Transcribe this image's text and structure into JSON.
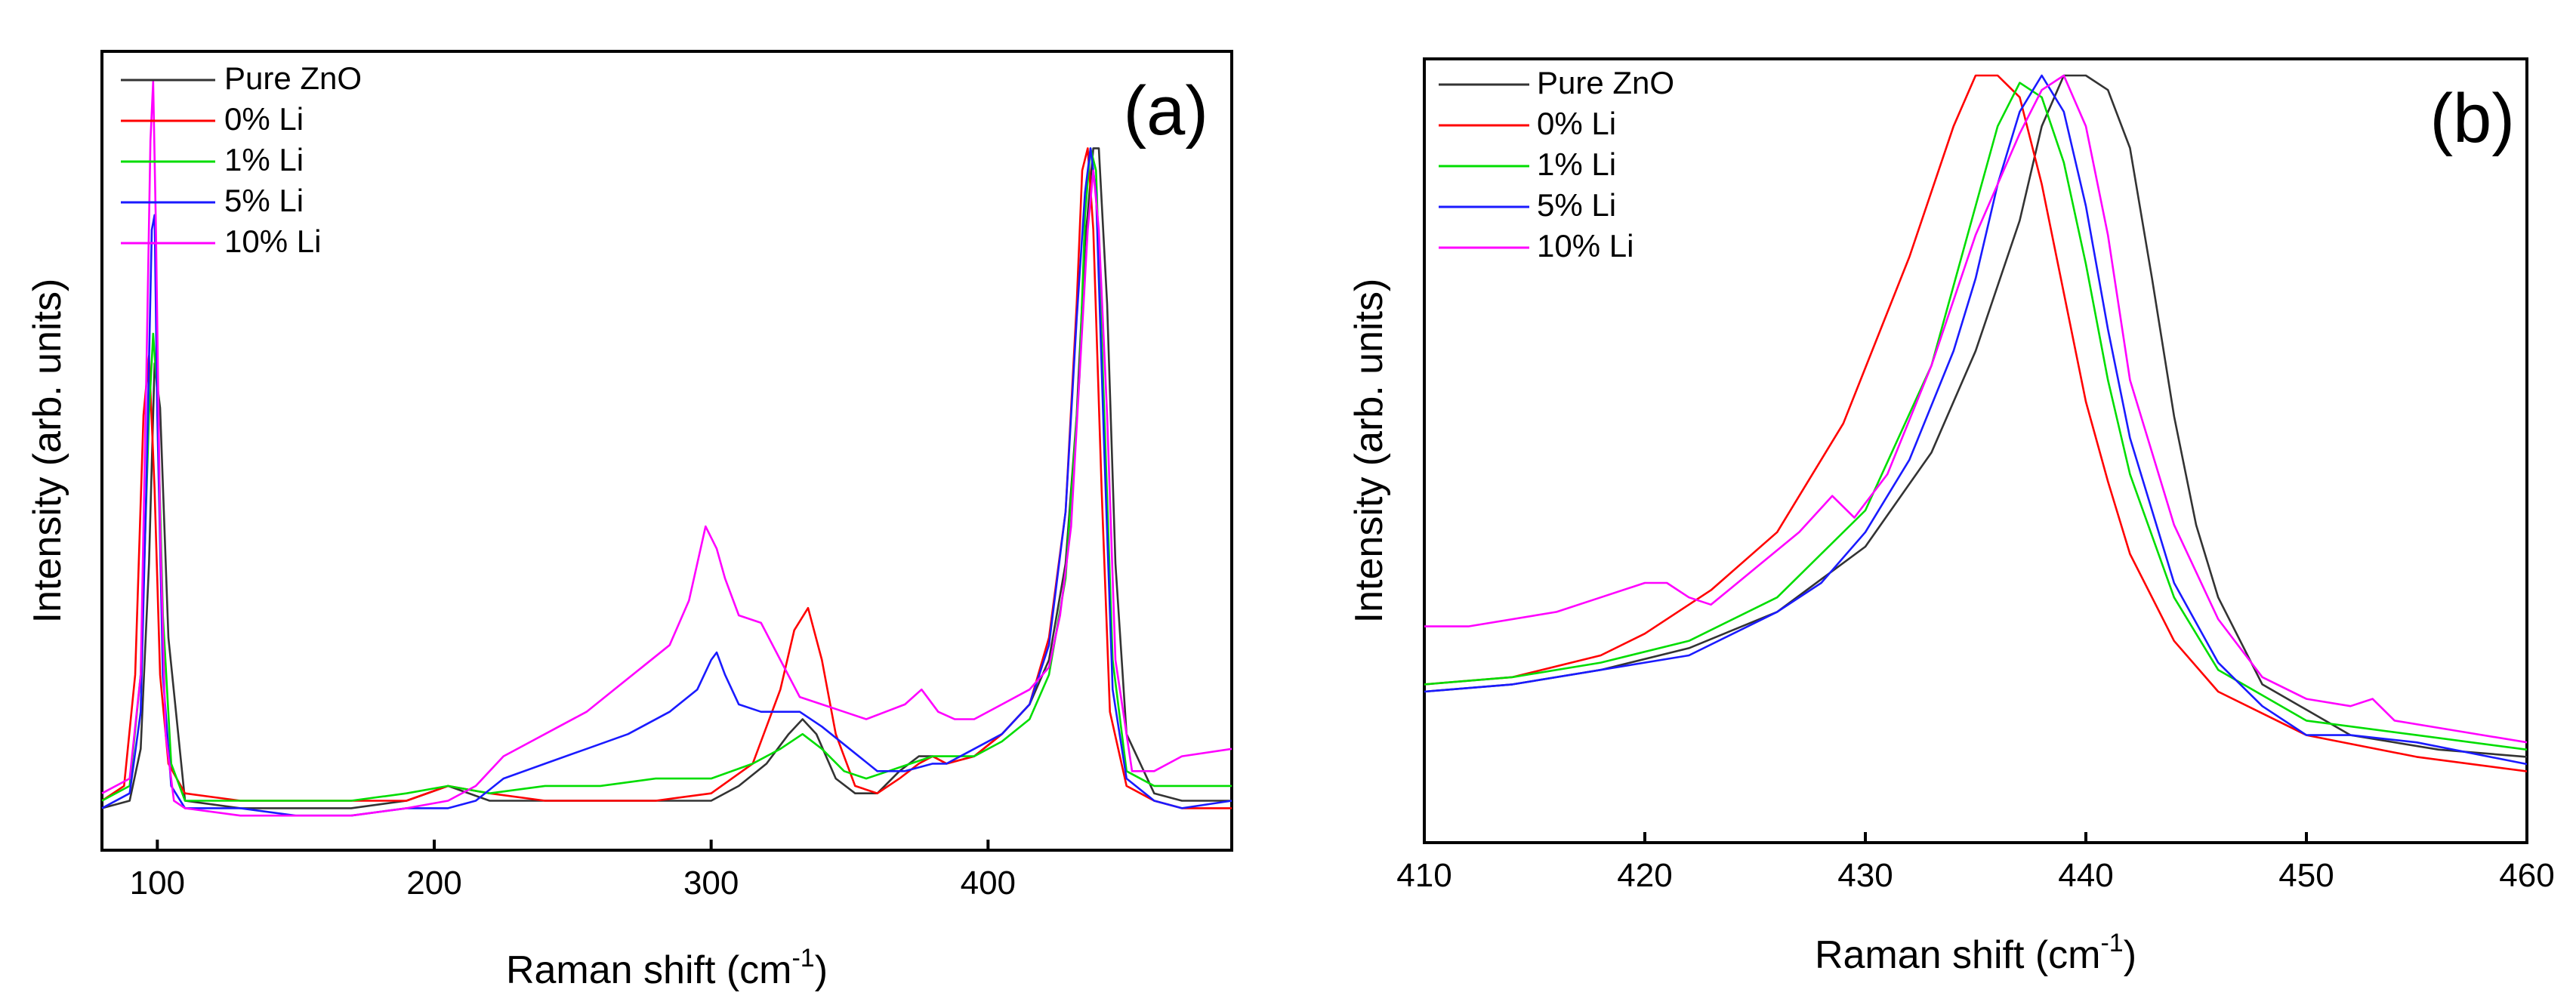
{
  "colors": {
    "Pure ZnO": "#333333",
    "0% Li": "#ff0000",
    "1% Li": "#00dd00",
    "5% Li": "#1a1aff",
    "10% Li": "#ff00ff"
  },
  "chart_data": [
    {
      "type": "line",
      "panel_label": "(a)",
      "xlabel_main": "Raman shift (cm",
      "xlabel_sup": "-1",
      "xlabel_end": ")",
      "ylabel": "Intensity (arb. units)",
      "xlim": [
        80,
        488
      ],
      "ylim": [
        0,
        1
      ],
      "xticks": [
        100,
        200,
        300,
        400
      ],
      "xtick_labels": [
        "100",
        "200",
        "300",
        "400"
      ],
      "legend_position": "top-left",
      "series": [
        {
          "name": "Pure ZnO",
          "x": [
            80,
            90,
            94,
            97,
            99,
            101,
            104,
            110,
            130,
            150,
            170,
            190,
            205,
            220,
            240,
            260,
            280,
            300,
            310,
            320,
            328,
            333,
            338,
            345,
            352,
            360,
            368,
            375,
            380,
            385,
            395,
            405,
            415,
            422,
            428,
            432,
            435,
            438,
            440,
            443,
            446,
            450,
            460,
            470,
            488
          ],
          "y": [
            0.02,
            0.03,
            0.1,
            0.35,
            0.62,
            0.56,
            0.25,
            0.03,
            0.02,
            0.02,
            0.02,
            0.03,
            0.05,
            0.03,
            0.03,
            0.03,
            0.03,
            0.03,
            0.05,
            0.08,
            0.12,
            0.14,
            0.12,
            0.06,
            0.04,
            0.04,
            0.07,
            0.09,
            0.09,
            0.08,
            0.09,
            0.12,
            0.16,
            0.22,
            0.35,
            0.55,
            0.78,
            0.91,
            0.91,
            0.7,
            0.35,
            0.12,
            0.04,
            0.03,
            0.03
          ]
        },
        {
          "name": "0% Li",
          "x": [
            80,
            88,
            92,
            95,
            97,
            99,
            101,
            104,
            110,
            130,
            150,
            170,
            190,
            205,
            220,
            240,
            260,
            280,
            300,
            315,
            325,
            330,
            335,
            340,
            345,
            352,
            360,
            368,
            375,
            380,
            385,
            395,
            405,
            415,
            422,
            428,
            432,
            434,
            436,
            438,
            441,
            444,
            450,
            460,
            470,
            488
          ],
          "y": [
            0.03,
            0.05,
            0.2,
            0.55,
            0.63,
            0.45,
            0.2,
            0.08,
            0.04,
            0.03,
            0.03,
            0.03,
            0.03,
            0.05,
            0.04,
            0.03,
            0.03,
            0.03,
            0.04,
            0.08,
            0.18,
            0.26,
            0.29,
            0.22,
            0.12,
            0.05,
            0.04,
            0.06,
            0.08,
            0.09,
            0.08,
            0.09,
            0.12,
            0.16,
            0.25,
            0.42,
            0.7,
            0.88,
            0.91,
            0.8,
            0.45,
            0.15,
            0.05,
            0.03,
            0.02,
            0.02
          ]
        },
        {
          "name": "1% Li",
          "x": [
            80,
            90,
            94,
            97,
            98.5,
            100,
            102,
            105,
            110,
            130,
            150,
            170,
            190,
            205,
            220,
            240,
            260,
            280,
            300,
            315,
            325,
            333,
            340,
            348,
            356,
            364,
            372,
            380,
            385,
            395,
            405,
            415,
            422,
            428,
            433,
            435,
            437,
            439,
            442,
            445,
            450,
            460,
            470,
            488
          ],
          "y": [
            0.03,
            0.05,
            0.2,
            0.55,
            0.66,
            0.58,
            0.28,
            0.08,
            0.03,
            0.03,
            0.03,
            0.03,
            0.04,
            0.05,
            0.04,
            0.05,
            0.05,
            0.06,
            0.06,
            0.08,
            0.1,
            0.12,
            0.1,
            0.07,
            0.06,
            0.07,
            0.08,
            0.09,
            0.09,
            0.09,
            0.11,
            0.14,
            0.2,
            0.33,
            0.6,
            0.82,
            0.91,
            0.88,
            0.55,
            0.22,
            0.07,
            0.05,
            0.05,
            0.05
          ]
        },
        {
          "name": "5% Li",
          "x": [
            80,
            90,
            94,
            96,
            98,
            99,
            100,
            102,
            105,
            110,
            130,
            150,
            170,
            190,
            205,
            215,
            225,
            240,
            255,
            270,
            285,
            295,
            300,
            302,
            305,
            310,
            318,
            325,
            332,
            340,
            350,
            360,
            370,
            380,
            385,
            395,
            405,
            415,
            422,
            428,
            432,
            435,
            437,
            439,
            442,
            445,
            450,
            460,
            470,
            488
          ],
          "y": [
            0.02,
            0.04,
            0.15,
            0.45,
            0.8,
            0.82,
            0.55,
            0.2,
            0.05,
            0.02,
            0.02,
            0.01,
            0.01,
            0.02,
            0.02,
            0.03,
            0.06,
            0.08,
            0.1,
            0.12,
            0.15,
            0.18,
            0.22,
            0.23,
            0.2,
            0.16,
            0.15,
            0.15,
            0.15,
            0.13,
            0.1,
            0.07,
            0.07,
            0.08,
            0.08,
            0.1,
            0.12,
            0.16,
            0.24,
            0.42,
            0.68,
            0.85,
            0.91,
            0.85,
            0.5,
            0.18,
            0.06,
            0.03,
            0.02,
            0.03
          ]
        },
        {
          "name": "10% Li",
          "x": [
            80,
            90,
            94,
            96,
            97.5,
            98.5,
            99.5,
            101,
            103,
            106,
            110,
            130,
            150,
            170,
            190,
            205,
            215,
            225,
            235,
            245,
            255,
            265,
            275,
            285,
            292,
            298,
            302,
            305,
            310,
            318,
            325,
            332,
            340,
            348,
            356,
            363,
            370,
            376,
            382,
            388,
            395,
            405,
            415,
            422,
            426,
            430,
            433,
            436,
            438,
            440,
            443,
            446,
            452,
            460,
            470,
            488
          ],
          "y": [
            0.04,
            0.06,
            0.2,
            0.6,
            0.92,
            1.0,
            0.8,
            0.4,
            0.12,
            0.03,
            0.02,
            0.01,
            0.01,
            0.01,
            0.02,
            0.03,
            0.05,
            0.09,
            0.11,
            0.13,
            0.15,
            0.18,
            0.21,
            0.24,
            0.3,
            0.4,
            0.37,
            0.33,
            0.28,
            0.27,
            0.22,
            0.17,
            0.16,
            0.15,
            0.14,
            0.15,
            0.16,
            0.18,
            0.15,
            0.14,
            0.14,
            0.16,
            0.18,
            0.21,
            0.28,
            0.4,
            0.6,
            0.8,
            0.88,
            0.8,
            0.55,
            0.22,
            0.07,
            0.07,
            0.09,
            0.1
          ]
        }
      ]
    },
    {
      "type": "line",
      "panel_label": "(b)",
      "xlabel_main": "Raman shift (cm",
      "xlabel_sup": "-1",
      "xlabel_end": ")",
      "ylabel": "Intensity (arb. units)",
      "xlim": [
        410,
        460
      ],
      "ylim": [
        0,
        1
      ],
      "xticks": [
        410,
        420,
        430,
        440,
        450,
        460
      ],
      "xtick_labels": [
        "410",
        "420",
        "430",
        "440",
        "450",
        "460"
      ],
      "legend_position": "top-left",
      "series": [
        {
          "name": "Pure ZnO",
          "x": [
            410,
            414,
            418,
            422,
            426,
            430,
            433,
            435,
            437,
            438,
            439,
            440,
            441,
            442,
            443,
            444,
            445,
            446,
            448,
            452,
            456,
            460
          ],
          "y": [
            0.15,
            0.16,
            0.18,
            0.21,
            0.26,
            0.35,
            0.48,
            0.62,
            0.8,
            0.93,
            1.0,
            1.0,
            0.98,
            0.9,
            0.72,
            0.53,
            0.38,
            0.28,
            0.16,
            0.09,
            0.07,
            0.06
          ]
        },
        {
          "name": "0% Li",
          "x": [
            410,
            414,
            418,
            420,
            423,
            426,
            429,
            432,
            434,
            435,
            436,
            437,
            438,
            439,
            440,
            441,
            442,
            444,
            446,
            450,
            455,
            460
          ],
          "y": [
            0.16,
            0.17,
            0.2,
            0.23,
            0.29,
            0.37,
            0.52,
            0.75,
            0.93,
            1.0,
            1.0,
            0.97,
            0.85,
            0.7,
            0.55,
            0.44,
            0.34,
            0.22,
            0.15,
            0.09,
            0.06,
            0.04
          ]
        },
        {
          "name": "1% Li",
          "x": [
            410,
            414,
            418,
            422,
            426,
            430,
            433,
            435,
            436,
            437,
            438,
            439,
            440,
            441,
            442,
            444,
            446,
            450,
            455,
            460
          ],
          "y": [
            0.16,
            0.17,
            0.19,
            0.22,
            0.28,
            0.4,
            0.6,
            0.82,
            0.93,
            0.99,
            0.97,
            0.88,
            0.74,
            0.58,
            0.45,
            0.28,
            0.18,
            0.11,
            0.09,
            0.07
          ]
        },
        {
          "name": "5% Li",
          "x": [
            410,
            414,
            418,
            422,
            426,
            428,
            430,
            432,
            434,
            435,
            436,
            437,
            438,
            439,
            440,
            441,
            442,
            444,
            446,
            448,
            450,
            452,
            455,
            460
          ],
          "y": [
            0.15,
            0.16,
            0.18,
            0.2,
            0.26,
            0.3,
            0.37,
            0.47,
            0.62,
            0.72,
            0.85,
            0.95,
            1.0,
            0.95,
            0.82,
            0.65,
            0.5,
            0.3,
            0.19,
            0.13,
            0.09,
            0.09,
            0.08,
            0.05
          ]
        },
        {
          "name": "10% Li",
          "x": [
            410,
            412,
            416,
            418,
            420,
            421,
            422,
            423,
            425,
            427,
            428.5,
            429.5,
            431,
            433,
            435,
            437,
            438,
            439,
            440,
            441,
            442,
            444,
            446,
            448,
            450,
            452,
            453,
            454,
            456,
            458,
            460
          ],
          "y": [
            0.24,
            0.24,
            0.26,
            0.28,
            0.3,
            0.3,
            0.28,
            0.27,
            0.32,
            0.37,
            0.42,
            0.39,
            0.45,
            0.6,
            0.78,
            0.92,
            0.98,
            1.0,
            0.93,
            0.78,
            0.58,
            0.38,
            0.25,
            0.17,
            0.14,
            0.13,
            0.14,
            0.11,
            0.1,
            0.09,
            0.08
          ]
        }
      ]
    }
  ]
}
